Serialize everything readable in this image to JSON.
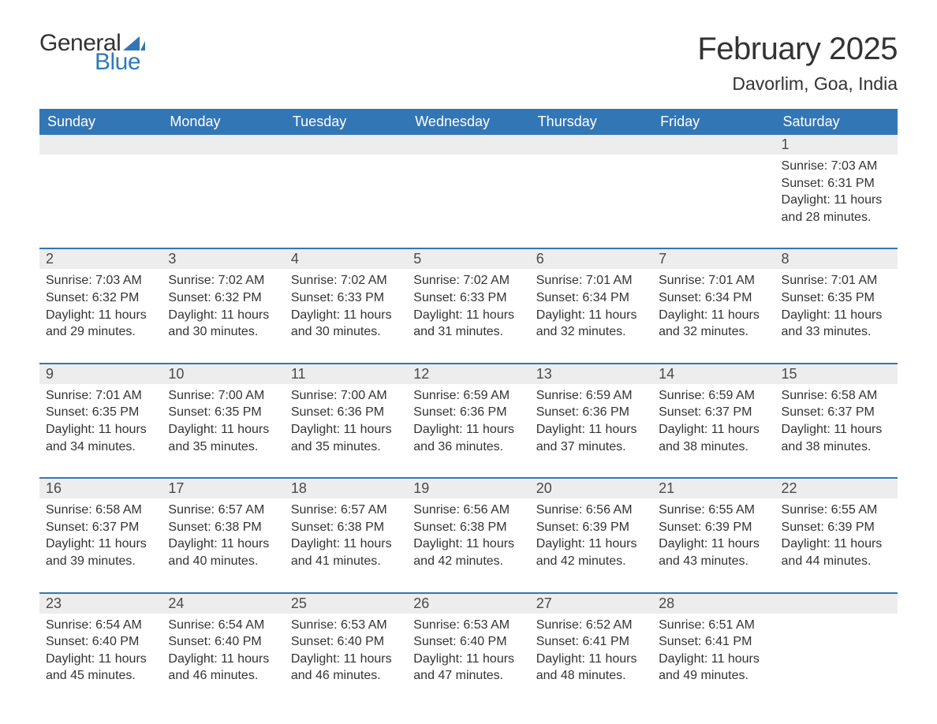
{
  "logo": {
    "text_general": "General",
    "text_blue": "Blue"
  },
  "title": "February 2025",
  "location": "Davorlim, Goa, India",
  "colors": {
    "header_bg": "#3376b6",
    "header_text": "#ffffff",
    "daynum_bg": "#ededed",
    "border": "#3376b6",
    "text": "#333333",
    "logo_blue": "#2f79bd"
  },
  "day_names": [
    "Sunday",
    "Monday",
    "Tuesday",
    "Wednesday",
    "Thursday",
    "Friday",
    "Saturday"
  ],
  "weeks": [
    [
      null,
      null,
      null,
      null,
      null,
      null,
      {
        "n": "1",
        "sunrise": "7:03 AM",
        "sunset": "6:31 PM",
        "daylight": "11 hours and 28 minutes."
      }
    ],
    [
      {
        "n": "2",
        "sunrise": "7:03 AM",
        "sunset": "6:32 PM",
        "daylight": "11 hours and 29 minutes."
      },
      {
        "n": "3",
        "sunrise": "7:02 AM",
        "sunset": "6:32 PM",
        "daylight": "11 hours and 30 minutes."
      },
      {
        "n": "4",
        "sunrise": "7:02 AM",
        "sunset": "6:33 PM",
        "daylight": "11 hours and 30 minutes."
      },
      {
        "n": "5",
        "sunrise": "7:02 AM",
        "sunset": "6:33 PM",
        "daylight": "11 hours and 31 minutes."
      },
      {
        "n": "6",
        "sunrise": "7:01 AM",
        "sunset": "6:34 PM",
        "daylight": "11 hours and 32 minutes."
      },
      {
        "n": "7",
        "sunrise": "7:01 AM",
        "sunset": "6:34 PM",
        "daylight": "11 hours and 32 minutes."
      },
      {
        "n": "8",
        "sunrise": "7:01 AM",
        "sunset": "6:35 PM",
        "daylight": "11 hours and 33 minutes."
      }
    ],
    [
      {
        "n": "9",
        "sunrise": "7:01 AM",
        "sunset": "6:35 PM",
        "daylight": "11 hours and 34 minutes."
      },
      {
        "n": "10",
        "sunrise": "7:00 AM",
        "sunset": "6:35 PM",
        "daylight": "11 hours and 35 minutes."
      },
      {
        "n": "11",
        "sunrise": "7:00 AM",
        "sunset": "6:36 PM",
        "daylight": "11 hours and 35 minutes."
      },
      {
        "n": "12",
        "sunrise": "6:59 AM",
        "sunset": "6:36 PM",
        "daylight": "11 hours and 36 minutes."
      },
      {
        "n": "13",
        "sunrise": "6:59 AM",
        "sunset": "6:36 PM",
        "daylight": "11 hours and 37 minutes."
      },
      {
        "n": "14",
        "sunrise": "6:59 AM",
        "sunset": "6:37 PM",
        "daylight": "11 hours and 38 minutes."
      },
      {
        "n": "15",
        "sunrise": "6:58 AM",
        "sunset": "6:37 PM",
        "daylight": "11 hours and 38 minutes."
      }
    ],
    [
      {
        "n": "16",
        "sunrise": "6:58 AM",
        "sunset": "6:37 PM",
        "daylight": "11 hours and 39 minutes."
      },
      {
        "n": "17",
        "sunrise": "6:57 AM",
        "sunset": "6:38 PM",
        "daylight": "11 hours and 40 minutes."
      },
      {
        "n": "18",
        "sunrise": "6:57 AM",
        "sunset": "6:38 PM",
        "daylight": "11 hours and 41 minutes."
      },
      {
        "n": "19",
        "sunrise": "6:56 AM",
        "sunset": "6:38 PM",
        "daylight": "11 hours and 42 minutes."
      },
      {
        "n": "20",
        "sunrise": "6:56 AM",
        "sunset": "6:39 PM",
        "daylight": "11 hours and 42 minutes."
      },
      {
        "n": "21",
        "sunrise": "6:55 AM",
        "sunset": "6:39 PM",
        "daylight": "11 hours and 43 minutes."
      },
      {
        "n": "22",
        "sunrise": "6:55 AM",
        "sunset": "6:39 PM",
        "daylight": "11 hours and 44 minutes."
      }
    ],
    [
      {
        "n": "23",
        "sunrise": "6:54 AM",
        "sunset": "6:40 PM",
        "daylight": "11 hours and 45 minutes."
      },
      {
        "n": "24",
        "sunrise": "6:54 AM",
        "sunset": "6:40 PM",
        "daylight": "11 hours and 46 minutes."
      },
      {
        "n": "25",
        "sunrise": "6:53 AM",
        "sunset": "6:40 PM",
        "daylight": "11 hours and 46 minutes."
      },
      {
        "n": "26",
        "sunrise": "6:53 AM",
        "sunset": "6:40 PM",
        "daylight": "11 hours and 47 minutes."
      },
      {
        "n": "27",
        "sunrise": "6:52 AM",
        "sunset": "6:41 PM",
        "daylight": "11 hours and 48 minutes."
      },
      {
        "n": "28",
        "sunrise": "6:51 AM",
        "sunset": "6:41 PM",
        "daylight": "11 hours and 49 minutes."
      },
      null
    ]
  ],
  "labels": {
    "sunrise": "Sunrise: ",
    "sunset": "Sunset: ",
    "daylight": "Daylight: "
  }
}
